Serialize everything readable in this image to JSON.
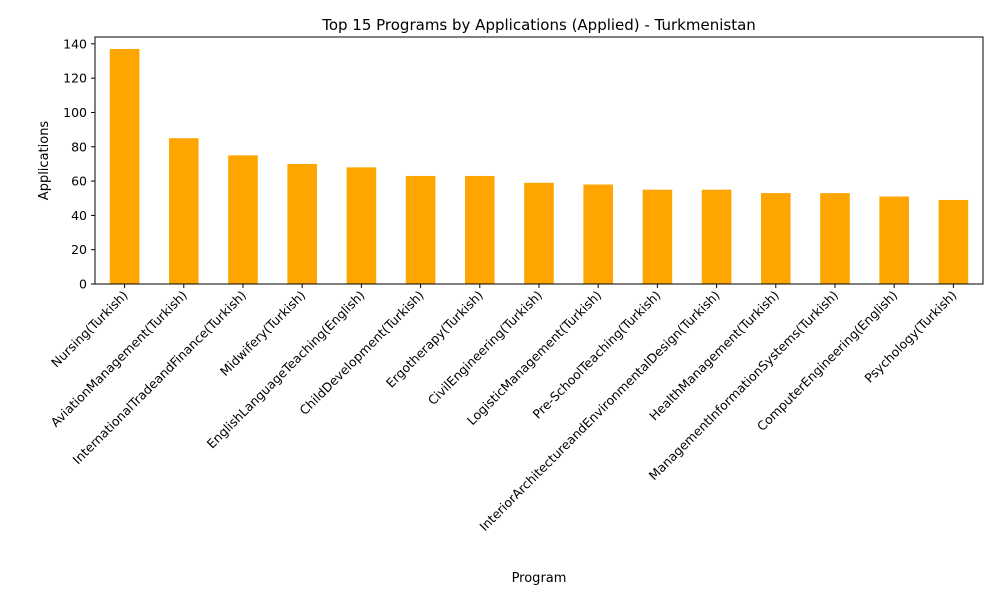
{
  "chart_data": {
    "type": "bar",
    "title": "Top 15 Programs by Applications (Applied) - Turkmenistan",
    "xlabel": "Program",
    "ylabel": "Applications",
    "categories": [
      "Nursing(Turkish)",
      "AviationManagement(Turkish)",
      "InternationalTradeandFinance(Turkish)",
      "Midwifery(Turkish)",
      "EnglishLanguageTeaching(English)",
      "ChildDevelopment(Turkish)",
      "Ergotherapy(Turkish)",
      "CivilEngineering(Turkish)",
      "LogisticManagement(Turkish)",
      "Pre-SchoolTeaching(Turkish)",
      "InteriorArchitectureandEnvironmentalDesign(Turkish)",
      "HealthManagement(Turkish)",
      "ManagementInformationSystems(Turkish)",
      "ComputerEngineering(English)",
      "Psychology(Turkish)"
    ],
    "values": [
      137,
      85,
      75,
      70,
      68,
      63,
      63,
      59,
      58,
      55,
      55,
      53,
      53,
      51,
      49
    ],
    "ylim": [
      0,
      144
    ],
    "yticks": [
      0,
      20,
      40,
      60,
      80,
      100,
      120,
      140
    ],
    "bar_color": "#FFA500",
    "grid": false,
    "legend": "none"
  }
}
